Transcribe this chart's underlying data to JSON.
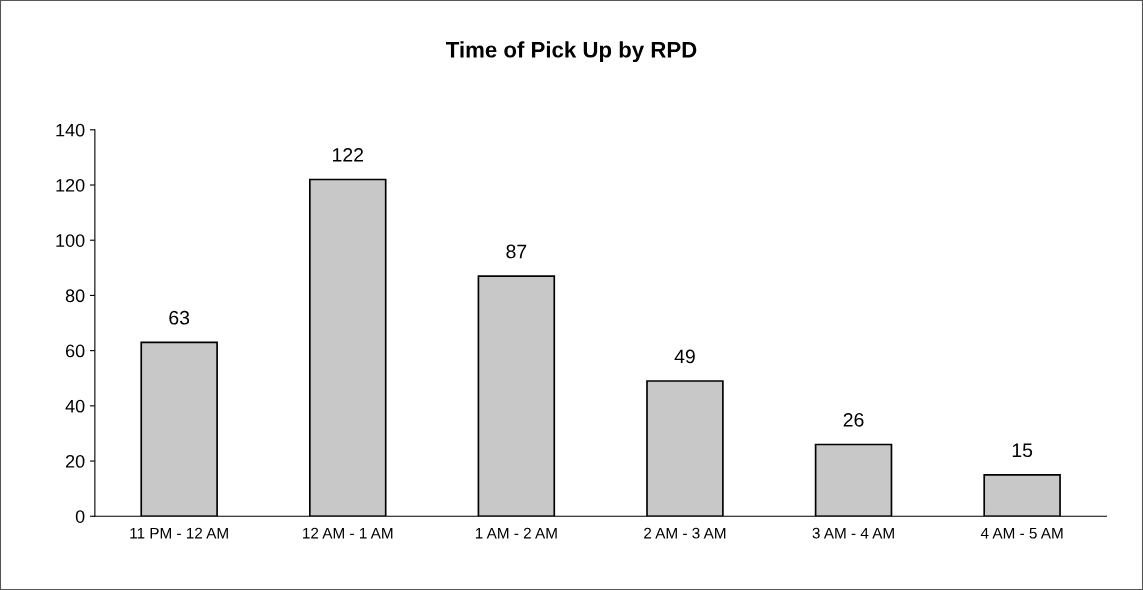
{
  "chart_data": {
    "type": "bar",
    "title": "Time of Pick Up by RPD",
    "categories": [
      "11 PM - 12 AM",
      "12 AM - 1 AM",
      "1 AM - 2 AM",
      "2 AM - 3 AM",
      "3 AM - 4 AM",
      "4 AM - 5 AM"
    ],
    "values": [
      63,
      122,
      87,
      49,
      26,
      15
    ],
    "color": "#c8c8c8",
    "ylim": [
      0,
      140
    ],
    "yticks": [
      0,
      20,
      40,
      60,
      80,
      100,
      120,
      140
    ],
    "grid": false,
    "data_labels": true
  }
}
